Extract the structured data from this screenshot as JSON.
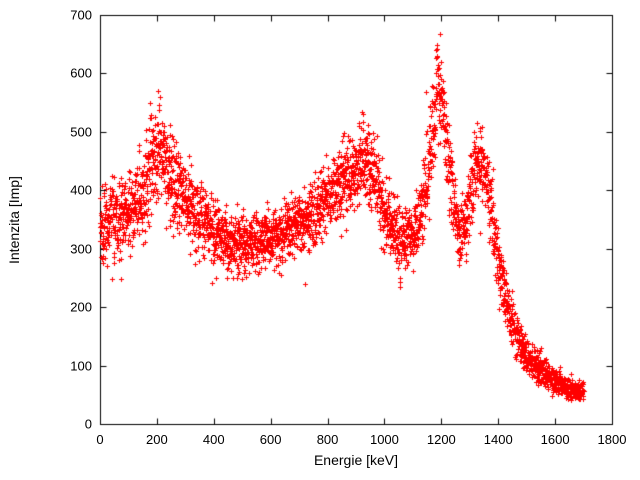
{
  "chart_data": {
    "type": "scatter",
    "title": "",
    "xlabel": "Energie [keV]",
    "ylabel": "Intenzita [Imp]",
    "xlim": [
      0,
      1800
    ],
    "ylim": [
      0,
      700
    ],
    "x_ticks": [
      0,
      200,
      400,
      600,
      800,
      1000,
      1200,
      1400,
      1600,
      1800
    ],
    "y_ticks": [
      0,
      100,
      200,
      300,
      400,
      500,
      600,
      700
    ],
    "grid": false,
    "legend": "none",
    "marker": "plus",
    "marker_color": "#ff0000",
    "frame_color": "#000000",
    "background_color": "#ffffff",
    "data_x_range": [
      0,
      1700
    ],
    "points_per_kev": 2,
    "noise_model": "gaussian",
    "profile": [
      [
        0,
        350,
        35
      ],
      [
        40,
        345,
        32
      ],
      [
        80,
        355,
        32
      ],
      [
        120,
        370,
        32
      ],
      [
        160,
        410,
        35
      ],
      [
        190,
        465,
        40
      ],
      [
        210,
        470,
        42
      ],
      [
        240,
        440,
        38
      ],
      [
        280,
        405,
        35
      ],
      [
        320,
        375,
        32
      ],
      [
        360,
        350,
        30
      ],
      [
        400,
        330,
        28
      ],
      [
        450,
        315,
        25
      ],
      [
        500,
        308,
        25
      ],
      [
        560,
        310,
        25
      ],
      [
        620,
        322,
        26
      ],
      [
        680,
        338,
        27
      ],
      [
        740,
        360,
        28
      ],
      [
        800,
        388,
        30
      ],
      [
        850,
        415,
        32
      ],
      [
        900,
        440,
        34
      ],
      [
        935,
        448,
        35
      ],
      [
        960,
        430,
        33
      ],
      [
        990,
        380,
        32
      ],
      [
        1020,
        340,
        28
      ],
      [
        1060,
        318,
        26
      ],
      [
        1100,
        320,
        26
      ],
      [
        1130,
        355,
        30
      ],
      [
        1160,
        470,
        45
      ],
      [
        1180,
        560,
        45
      ],
      [
        1200,
        555,
        45
      ],
      [
        1220,
        470,
        40
      ],
      [
        1245,
        370,
        32
      ],
      [
        1265,
        325,
        28
      ],
      [
        1285,
        345,
        30
      ],
      [
        1310,
        420,
        35
      ],
      [
        1330,
        455,
        35
      ],
      [
        1350,
        430,
        33
      ],
      [
        1375,
        370,
        32
      ],
      [
        1400,
        280,
        28
      ],
      [
        1430,
        205,
        22
      ],
      [
        1460,
        155,
        18
      ],
      [
        1490,
        125,
        15
      ],
      [
        1530,
        100,
        13
      ],
      [
        1570,
        85,
        12
      ],
      [
        1610,
        70,
        10
      ],
      [
        1650,
        60,
        9
      ],
      [
        1700,
        55,
        9
      ]
    ]
  }
}
